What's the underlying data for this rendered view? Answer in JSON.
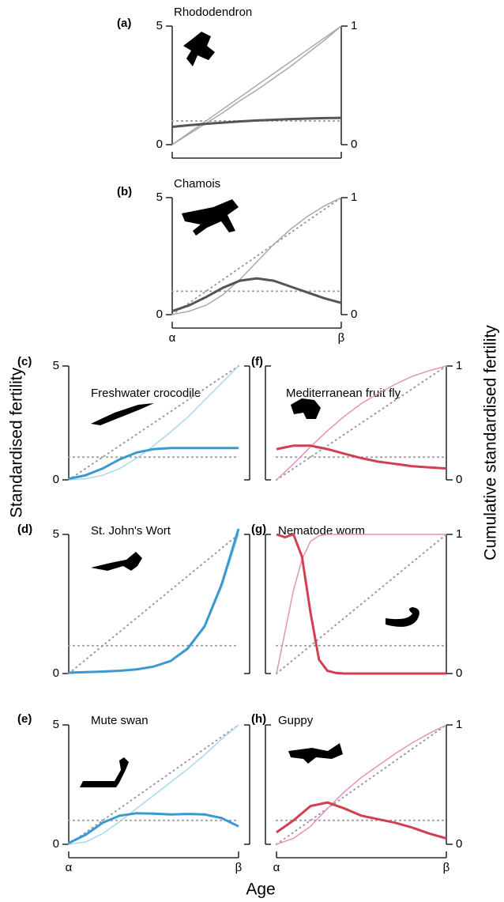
{
  "y_label": "Standardised fertility",
  "y2_label": "Cumulative standardised fertility",
  "x_label": "Age",
  "chart_data": [
    {
      "type": "line",
      "label": "(a)",
      "title": "Rhododendron",
      "xlim": [
        0,
        1
      ],
      "ylim": [
        0,
        5
      ],
      "yticks": [
        0,
        5
      ],
      "y2lim": [
        0,
        1
      ],
      "y2ticks": [
        0,
        1
      ],
      "x_axis_line": true,
      "x": [
        0,
        0.1,
        0.2,
        0.3,
        0.4,
        0.5,
        0.6,
        0.7,
        0.8,
        0.9,
        1
      ],
      "series": [
        {
          "color": "#999999",
          "style": "dotted",
          "x": [
            0,
            1
          ],
          "values": [
            1,
            1
          ]
        },
        {
          "color": "#aaaaaa",
          "style": "solid",
          "axis": "y2",
          "x": [
            0,
            1
          ],
          "values": [
            0,
            1
          ]
        },
        {
          "color": "#aaaaaa",
          "axis": "y2",
          "values": [
            0,
            0.09,
            0.18,
            0.27,
            0.37,
            0.46,
            0.56,
            0.66,
            0.77,
            0.88,
            1
          ]
        },
        {
          "color": "#555555",
          "values": [
            0.75,
            0.82,
            0.88,
            0.93,
            0.98,
            1.02,
            1.05,
            1.08,
            1.1,
            1.12,
            1.13
          ]
        }
      ]
    },
    {
      "type": "line",
      "label": "(b)",
      "title": "Chamois",
      "xlim": [
        0,
        1
      ],
      "ylim": [
        0,
        5
      ],
      "yticks": [
        0,
        5
      ],
      "y2lim": [
        0,
        1
      ],
      "y2ticks": [
        0,
        1
      ],
      "x_axis_line": true,
      "xticks": [
        {
          "value": 0,
          "label": "α"
        },
        {
          "value": 1,
          "label": "β"
        }
      ],
      "x": [
        0,
        0.1,
        0.2,
        0.3,
        0.4,
        0.5,
        0.6,
        0.7,
        0.8,
        0.9,
        1
      ],
      "series": [
        {
          "color": "#999999",
          "style": "dotted",
          "x": [
            0,
            1
          ],
          "values": [
            1,
            1
          ]
        },
        {
          "color": "#999999",
          "style": "dotted",
          "axis": "y2",
          "x": [
            0,
            1
          ],
          "values": [
            0,
            1
          ]
        },
        {
          "color": "#aaaaaa",
          "axis": "y2",
          "values": [
            0,
            0.03,
            0.08,
            0.17,
            0.3,
            0.45,
            0.6,
            0.73,
            0.84,
            0.93,
            1
          ]
        },
        {
          "color": "#555555",
          "values": [
            0.15,
            0.4,
            0.75,
            1.15,
            1.45,
            1.55,
            1.45,
            1.2,
            0.95,
            0.7,
            0.5
          ]
        }
      ]
    },
    {
      "type": "line",
      "label": "(c)",
      "title": "Freshwater crocodile",
      "xlim": [
        0,
        1
      ],
      "ylim": [
        0,
        5
      ],
      "yticks": [
        0,
        5
      ],
      "y2lim": [
        0,
        1
      ],
      "x": [
        0,
        0.1,
        0.2,
        0.3,
        0.4,
        0.5,
        0.6,
        0.7,
        0.8,
        0.9,
        1
      ],
      "series": [
        {
          "color": "#999999",
          "style": "dotted",
          "x": [
            0,
            1
          ],
          "values": [
            1,
            1
          ]
        },
        {
          "color": "#999999",
          "style": "dotted",
          "axis": "y2",
          "x": [
            0,
            1
          ],
          "values": [
            0,
            1
          ]
        },
        {
          "color": "#a8d8f0",
          "axis": "y2",
          "values": [
            0,
            0.01,
            0.04,
            0.1,
            0.19,
            0.3,
            0.42,
            0.55,
            0.7,
            0.85,
            1
          ]
        },
        {
          "color": "#3a9ad0",
          "values": [
            0.05,
            0.2,
            0.5,
            0.9,
            1.2,
            1.35,
            1.4,
            1.4,
            1.4,
            1.4,
            1.4
          ]
        }
      ]
    },
    {
      "type": "line",
      "label": "(d)",
      "title": "St. John's Wort",
      "xlim": [
        0,
        1
      ],
      "ylim": [
        0,
        5
      ],
      "yticks": [
        0,
        5
      ],
      "y2lim": [
        0,
        1
      ],
      "x": [
        0,
        0.1,
        0.2,
        0.3,
        0.4,
        0.5,
        0.6,
        0.7,
        0.8,
        0.9,
        1
      ],
      "series": [
        {
          "color": "#999999",
          "style": "dotted",
          "x": [
            0,
            1
          ],
          "values": [
            1,
            1
          ]
        },
        {
          "color": "#999999",
          "style": "dotted",
          "axis": "y2",
          "x": [
            0,
            1
          ],
          "values": [
            0,
            1
          ]
        },
        {
          "color": "#a8d8f0",
          "axis": "y2",
          "values": [
            0,
            0.01,
            0.015,
            0.02,
            0.03,
            0.05,
            0.09,
            0.17,
            0.33,
            0.62,
            1
          ]
        },
        {
          "color": "#3a9ad0",
          "values": [
            0.03,
            0.05,
            0.07,
            0.1,
            0.15,
            0.25,
            0.45,
            0.9,
            1.7,
            3.2,
            5.2
          ]
        }
      ]
    },
    {
      "type": "line",
      "label": "(e)",
      "title": "Mute swan",
      "xlim": [
        0,
        1
      ],
      "ylim": [
        0,
        5
      ],
      "yticks": [
        0,
        5
      ],
      "y2lim": [
        0,
        1
      ],
      "x_axis_line": true,
      "xticks": [
        {
          "value": 0,
          "label": "α"
        },
        {
          "value": 1,
          "label": "β"
        }
      ],
      "x": [
        0,
        0.1,
        0.2,
        0.3,
        0.4,
        0.5,
        0.6,
        0.7,
        0.8,
        0.9,
        1
      ],
      "series": [
        {
          "color": "#999999",
          "style": "dotted",
          "x": [
            0,
            1
          ],
          "values": [
            1,
            1
          ]
        },
        {
          "color": "#999999",
          "style": "dotted",
          "axis": "y2",
          "x": [
            0,
            1
          ],
          "values": [
            0,
            1
          ]
        },
        {
          "color": "#a8d8f0",
          "axis": "y2",
          "values": [
            0,
            0.02,
            0.09,
            0.19,
            0.3,
            0.41,
            0.52,
            0.63,
            0.75,
            0.88,
            1
          ]
        },
        {
          "color": "#3a9ad0",
          "values": [
            0.05,
            0.4,
            0.9,
            1.2,
            1.3,
            1.28,
            1.25,
            1.27,
            1.25,
            1.1,
            0.75
          ]
        }
      ]
    },
    {
      "type": "line",
      "label": "(f)",
      "title": "Mediterranean fruit fly",
      "xlim": [
        0,
        1
      ],
      "ylim": [
        0,
        5
      ],
      "y2lim": [
        0,
        1
      ],
      "y2ticks": [
        0,
        1
      ],
      "x": [
        0,
        0.1,
        0.2,
        0.3,
        0.4,
        0.5,
        0.6,
        0.7,
        0.8,
        0.9,
        1
      ],
      "series": [
        {
          "color": "#999999",
          "style": "dotted",
          "x": [
            0,
            1
          ],
          "values": [
            1,
            1
          ]
        },
        {
          "color": "#999999",
          "style": "dotted",
          "axis": "y2",
          "x": [
            0,
            1
          ],
          "values": [
            0,
            1
          ]
        },
        {
          "color": "#e890c0",
          "axis": "y2",
          "values": [
            0,
            0.14,
            0.29,
            0.43,
            0.56,
            0.67,
            0.76,
            0.84,
            0.91,
            0.96,
            1
          ]
        },
        {
          "color": "#d0404f",
          "values": [
            1.35,
            1.5,
            1.5,
            1.35,
            1.15,
            0.95,
            0.8,
            0.7,
            0.6,
            0.55,
            0.5
          ]
        }
      ]
    },
    {
      "type": "line",
      "label": "(g)",
      "title": "Nematode worm",
      "xlim": [
        0,
        1
      ],
      "ylim": [
        0,
        5
      ],
      "y2lim": [
        0,
        1
      ],
      "y2ticks": [
        0,
        1
      ],
      "x": [
        0,
        0.05,
        0.1,
        0.15,
        0.2,
        0.25,
        0.3,
        0.35,
        0.4,
        0.5,
        0.6,
        0.8,
        1
      ],
      "series": [
        {
          "color": "#999999",
          "style": "dotted",
          "x": [
            0,
            1
          ],
          "values": [
            1,
            1
          ]
        },
        {
          "color": "#999999",
          "style": "dotted",
          "axis": "y2",
          "x": [
            0,
            1
          ],
          "values": [
            0,
            1
          ]
        },
        {
          "color": "#e890c0",
          "axis": "y2",
          "values": [
            0,
            0.3,
            0.6,
            0.82,
            0.95,
            0.99,
            1,
            1,
            1,
            1,
            1,
            1,
            1
          ]
        },
        {
          "color": "#d0404f",
          "values": [
            5,
            4.9,
            5,
            4.2,
            2.2,
            0.5,
            0.1,
            0.02,
            0,
            0,
            0,
            0,
            0
          ]
        }
      ]
    },
    {
      "type": "line",
      "label": "(h)",
      "title": "Guppy",
      "xlim": [
        0,
        1
      ],
      "ylim": [
        0,
        5
      ],
      "y2lim": [
        0,
        1
      ],
      "y2ticks": [
        0,
        1
      ],
      "x_axis_line": true,
      "xticks": [
        {
          "value": 0,
          "label": "α"
        },
        {
          "value": 1,
          "label": "β"
        }
      ],
      "x": [
        0,
        0.1,
        0.2,
        0.3,
        0.4,
        0.5,
        0.6,
        0.7,
        0.8,
        0.9,
        1
      ],
      "series": [
        {
          "color": "#999999",
          "style": "dotted",
          "x": [
            0,
            1
          ],
          "values": [
            1,
            1
          ]
        },
        {
          "color": "#999999",
          "style": "dotted",
          "axis": "y2",
          "x": [
            0,
            1
          ],
          "values": [
            0,
            1
          ]
        },
        {
          "color": "#e890c0",
          "axis": "y2",
          "values": [
            0,
            0.05,
            0.15,
            0.3,
            0.44,
            0.56,
            0.66,
            0.76,
            0.85,
            0.93,
            1
          ]
        },
        {
          "color": "#d0404f",
          "values": [
            0.5,
            1.0,
            1.6,
            1.75,
            1.5,
            1.2,
            1.05,
            0.9,
            0.7,
            0.45,
            0.25
          ]
        }
      ]
    }
  ]
}
